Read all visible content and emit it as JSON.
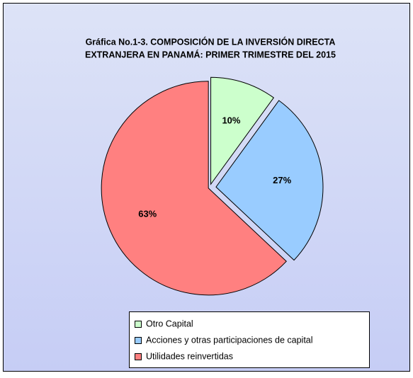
{
  "chart_data": {
    "type": "pie",
    "title": [
      "Gráfica No.1-3. COMPOSICIÓN DE LA INVERSIÓN DIRECTA",
      "EXTRANJERA EN PANAMÁ: PRIMER TRIMESTRE DEL 2015"
    ],
    "categories": [
      "Otro Capital",
      "Acciones y otras participaciones de capital",
      "Utilidades reinvertidas"
    ],
    "values": [
      10,
      27,
      63
    ],
    "value_labels": [
      "10%",
      "27%",
      "63%"
    ],
    "colors": [
      "#ccffcc",
      "#99ccff",
      "#ff8080"
    ],
    "legend": "bottom"
  }
}
